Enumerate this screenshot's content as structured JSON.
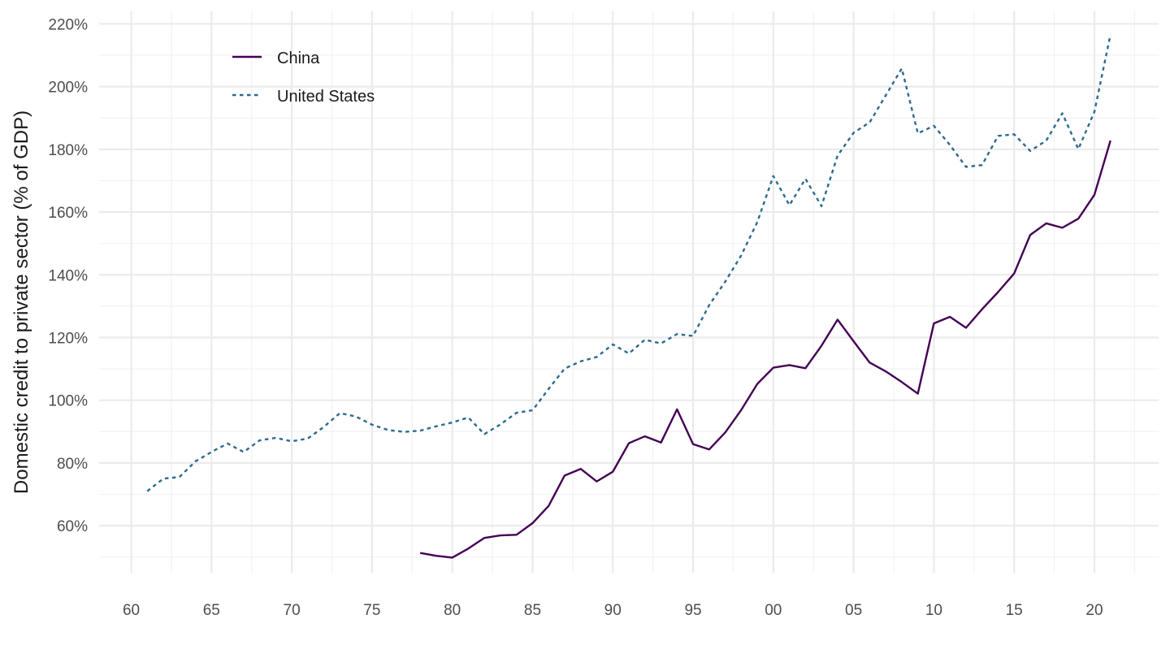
{
  "chart_data": {
    "type": "line",
    "ylabel": "Domestic credit to private sector (% of GDP)",
    "xlabel": "",
    "xlim": [
      1958,
      2024
    ],
    "ylim": [
      45,
      224
    ],
    "x_ticks": [
      {
        "year": 1960,
        "label": "60"
      },
      {
        "year": 1965,
        "label": "65"
      },
      {
        "year": 1970,
        "label": "70"
      },
      {
        "year": 1975,
        "label": "75"
      },
      {
        "year": 1980,
        "label": "80"
      },
      {
        "year": 1985,
        "label": "85"
      },
      {
        "year": 1990,
        "label": "90"
      },
      {
        "year": 1995,
        "label": "95"
      },
      {
        "year": 2000,
        "label": "00"
      },
      {
        "year": 2005,
        "label": "05"
      },
      {
        "year": 2010,
        "label": "10"
      },
      {
        "year": 2015,
        "label": "15"
      },
      {
        "year": 2020,
        "label": "20"
      }
    ],
    "y_ticks": [
      {
        "value": 60,
        "label": "60%"
      },
      {
        "value": 80,
        "label": "80%"
      },
      {
        "value": 100,
        "label": "100%"
      },
      {
        "value": 120,
        "label": "120%"
      },
      {
        "value": 140,
        "label": "140%"
      },
      {
        "value": 160,
        "label": "160%"
      },
      {
        "value": 180,
        "label": "180%"
      },
      {
        "value": 200,
        "label": "200%"
      },
      {
        "value": 220,
        "label": "220%"
      }
    ],
    "grid": true,
    "legend_position": "top-left",
    "series": [
      {
        "name": "China",
        "color": "#440154",
        "dash": "solid",
        "x": [
          1978,
          1979,
          1980,
          1981,
          1982,
          1983,
          1984,
          1985,
          1986,
          1987,
          1988,
          1989,
          1990,
          1991,
          1992,
          1993,
          1994,
          1995,
          1996,
          1997,
          1998,
          1999,
          2000,
          2001,
          2002,
          2003,
          2004,
          2005,
          2006,
          2007,
          2008,
          2009,
          2010,
          2011,
          2012,
          2013,
          2014,
          2015,
          2016,
          2017,
          2018,
          2019,
          2020,
          2021
        ],
        "y": [
          51.3,
          50.4,
          49.8,
          52.7,
          56.1,
          56.9,
          57.1,
          60.8,
          66.3,
          76.0,
          78.1,
          74.1,
          77.2,
          86.3,
          88.5,
          86.5,
          97.1,
          86.0,
          84.3,
          89.7,
          96.9,
          105.2,
          110.4,
          111.2,
          110.2,
          117.4,
          125.7,
          118.8,
          112.0,
          109.2,
          105.8,
          102.1,
          124.5,
          126.6,
          123.1,
          129.0,
          134.5,
          140.4,
          152.7,
          156.4,
          155.0,
          157.9,
          165.5,
          182.8
        ]
      },
      {
        "name": "United States",
        "color": "#2c6a8f",
        "dash": "dotted",
        "x": [
          1961,
          1962,
          1963,
          1964,
          1965,
          1966,
          1967,
          1968,
          1969,
          1970,
          1971,
          1972,
          1973,
          1974,
          1975,
          1976,
          1977,
          1978,
          1979,
          1980,
          1981,
          1982,
          1983,
          1984,
          1985,
          1986,
          1987,
          1988,
          1989,
          1990,
          1991,
          1992,
          1993,
          1994,
          1995,
          1996,
          1997,
          1998,
          1999,
          2000,
          2001,
          2002,
          2003,
          2004,
          2005,
          2006,
          2007,
          2008,
          2009,
          2010,
          2011,
          2012,
          2013,
          2014,
          2015,
          2016,
          2017,
          2018,
          2019,
          2020,
          2021
        ],
        "y": [
          71.0,
          75.0,
          75.5,
          80.5,
          83.5,
          86.2,
          83.5,
          87.2,
          88.0,
          86.9,
          87.8,
          91.5,
          95.9,
          94.8,
          92.2,
          90.5,
          89.9,
          90.3,
          91.7,
          92.9,
          94.5,
          89.2,
          92.3,
          96.0,
          96.8,
          103.6,
          110.1,
          112.4,
          113.8,
          117.8,
          114.9,
          119.3,
          118.1,
          121.1,
          120.5,
          130.3,
          137.8,
          146.2,
          156.8,
          171.5,
          162.2,
          170.6,
          161.9,
          178.0,
          185.3,
          188.6,
          197.2,
          205.8,
          185.1,
          187.5,
          181.4,
          174.4,
          175.0,
          184.3,
          184.8,
          179.5,
          182.8,
          191.5,
          180.1,
          192.0,
          216.6
        ]
      }
    ]
  }
}
